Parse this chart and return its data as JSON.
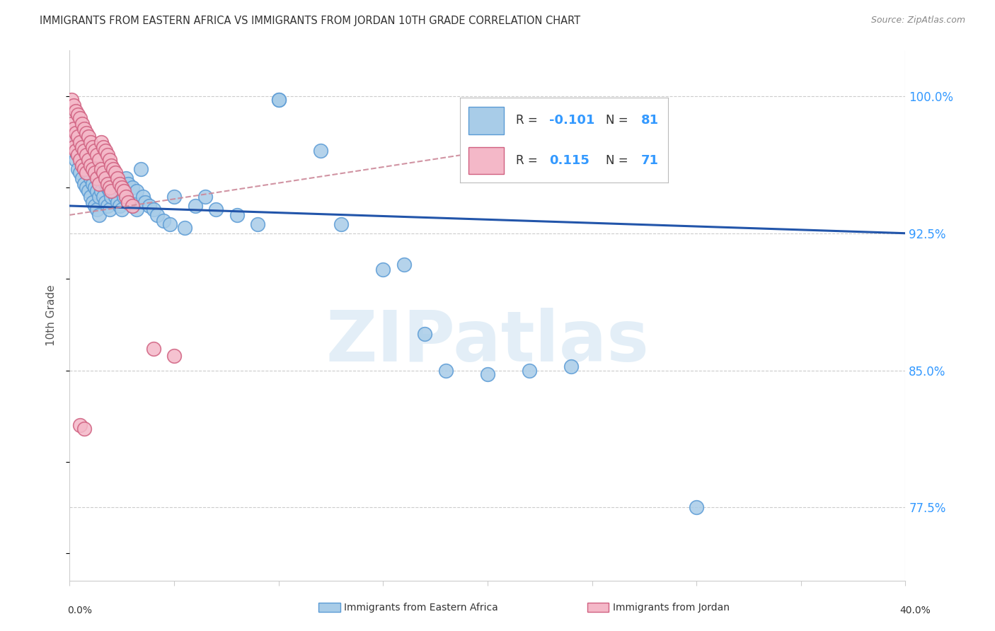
{
  "title": "IMMIGRANTS FROM EASTERN AFRICA VS IMMIGRANTS FROM JORDAN 10TH GRADE CORRELATION CHART",
  "source": "Source: ZipAtlas.com",
  "ylabel": "10th Grade",
  "ytick_values": [
    0.775,
    0.85,
    0.925,
    1.0
  ],
  "xlim": [
    0.0,
    0.4
  ],
  "ylim": [
    0.735,
    1.025
  ],
  "legend_label_blue": "Immigrants from Eastern Africa",
  "legend_label_pink": "Immigrants from Jordan",
  "blue_color": "#a8cce8",
  "blue_edge_color": "#5b9bd5",
  "blue_line_color": "#2255aa",
  "pink_color": "#f4b8c8",
  "pink_edge_color": "#d06080",
  "pink_line_color": "#cc4466",
  "pink_dashed_color": "#cc8899",
  "watermark": "ZIPatlas",
  "grid_color": "#cccccc",
  "title_color": "#333333",
  "right_label_color": "#3399ff",
  "blue_scatter": [
    [
      0.001,
      0.975
    ],
    [
      0.002,
      0.98
    ],
    [
      0.002,
      0.97
    ],
    [
      0.003,
      0.975
    ],
    [
      0.003,
      0.965
    ],
    [
      0.004,
      0.97
    ],
    [
      0.004,
      0.96
    ],
    [
      0.005,
      0.968
    ],
    [
      0.005,
      0.958
    ],
    [
      0.006,
      0.965
    ],
    [
      0.006,
      0.955
    ],
    [
      0.007,
      0.962
    ],
    [
      0.007,
      0.952
    ],
    [
      0.008,
      0.96
    ],
    [
      0.008,
      0.95
    ],
    [
      0.009,
      0.958
    ],
    [
      0.009,
      0.948
    ],
    [
      0.01,
      0.955
    ],
    [
      0.01,
      0.945
    ],
    [
      0.011,
      0.952
    ],
    [
      0.011,
      0.942
    ],
    [
      0.012,
      0.95
    ],
    [
      0.012,
      0.94
    ],
    [
      0.013,
      0.948
    ],
    [
      0.013,
      0.938
    ],
    [
      0.014,
      0.945
    ],
    [
      0.014,
      0.935
    ],
    [
      0.015,
      0.958
    ],
    [
      0.015,
      0.948
    ],
    [
      0.016,
      0.955
    ],
    [
      0.016,
      0.945
    ],
    [
      0.017,
      0.952
    ],
    [
      0.017,
      0.942
    ],
    [
      0.018,
      0.95
    ],
    [
      0.018,
      0.94
    ],
    [
      0.019,
      0.948
    ],
    [
      0.019,
      0.938
    ],
    [
      0.02,
      0.96
    ],
    [
      0.02,
      0.945
    ],
    [
      0.021,
      0.958
    ],
    [
      0.021,
      0.948
    ],
    [
      0.022,
      0.955
    ],
    [
      0.022,
      0.945
    ],
    [
      0.023,
      0.952
    ],
    [
      0.023,
      0.942
    ],
    [
      0.024,
      0.95
    ],
    [
      0.024,
      0.94
    ],
    [
      0.025,
      0.948
    ],
    [
      0.025,
      0.938
    ],
    [
      0.026,
      0.945
    ],
    [
      0.027,
      0.955
    ],
    [
      0.028,
      0.952
    ],
    [
      0.028,
      0.942
    ],
    [
      0.03,
      0.95
    ],
    [
      0.03,
      0.94
    ],
    [
      0.032,
      0.948
    ],
    [
      0.032,
      0.938
    ],
    [
      0.034,
      0.96
    ],
    [
      0.035,
      0.945
    ],
    [
      0.036,
      0.942
    ],
    [
      0.038,
      0.94
    ],
    [
      0.04,
      0.938
    ],
    [
      0.042,
      0.935
    ],
    [
      0.045,
      0.932
    ],
    [
      0.048,
      0.93
    ],
    [
      0.05,
      0.945
    ],
    [
      0.055,
      0.928
    ],
    [
      0.06,
      0.94
    ],
    [
      0.065,
      0.945
    ],
    [
      0.07,
      0.938
    ],
    [
      0.08,
      0.935
    ],
    [
      0.09,
      0.93
    ],
    [
      0.1,
      0.998
    ],
    [
      0.1,
      0.998
    ],
    [
      0.12,
      0.97
    ],
    [
      0.13,
      0.93
    ],
    [
      0.15,
      0.905
    ],
    [
      0.16,
      0.908
    ],
    [
      0.17,
      0.87
    ],
    [
      0.18,
      0.85
    ],
    [
      0.2,
      0.848
    ],
    [
      0.22,
      0.85
    ],
    [
      0.24,
      0.852
    ],
    [
      0.3,
      0.775
    ]
  ],
  "pink_scatter": [
    [
      0.001,
      0.998
    ],
    [
      0.001,
      0.985
    ],
    [
      0.001,
      0.975
    ],
    [
      0.002,
      0.995
    ],
    [
      0.002,
      0.982
    ],
    [
      0.002,
      0.972
    ],
    [
      0.003,
      0.992
    ],
    [
      0.003,
      0.98
    ],
    [
      0.003,
      0.97
    ],
    [
      0.004,
      0.99
    ],
    [
      0.004,
      0.978
    ],
    [
      0.004,
      0.968
    ],
    [
      0.005,
      0.988
    ],
    [
      0.005,
      0.975
    ],
    [
      0.005,
      0.965
    ],
    [
      0.006,
      0.985
    ],
    [
      0.006,
      0.972
    ],
    [
      0.006,
      0.962
    ],
    [
      0.007,
      0.982
    ],
    [
      0.007,
      0.97
    ],
    [
      0.007,
      0.96
    ],
    [
      0.008,
      0.98
    ],
    [
      0.008,
      0.968
    ],
    [
      0.008,
      0.958
    ],
    [
      0.009,
      0.978
    ],
    [
      0.009,
      0.965
    ],
    [
      0.01,
      0.975
    ],
    [
      0.01,
      0.962
    ],
    [
      0.011,
      0.972
    ],
    [
      0.011,
      0.96
    ],
    [
      0.012,
      0.97
    ],
    [
      0.012,
      0.958
    ],
    [
      0.013,
      0.968
    ],
    [
      0.013,
      0.955
    ],
    [
      0.014,
      0.965
    ],
    [
      0.014,
      0.952
    ],
    [
      0.015,
      0.975
    ],
    [
      0.015,
      0.96
    ],
    [
      0.016,
      0.972
    ],
    [
      0.016,
      0.958
    ],
    [
      0.017,
      0.97
    ],
    [
      0.017,
      0.955
    ],
    [
      0.018,
      0.968
    ],
    [
      0.018,
      0.952
    ],
    [
      0.019,
      0.965
    ],
    [
      0.019,
      0.95
    ],
    [
      0.02,
      0.962
    ],
    [
      0.02,
      0.948
    ],
    [
      0.021,
      0.96
    ],
    [
      0.022,
      0.958
    ],
    [
      0.023,
      0.955
    ],
    [
      0.024,
      0.952
    ],
    [
      0.025,
      0.95
    ],
    [
      0.026,
      0.948
    ],
    [
      0.027,
      0.945
    ],
    [
      0.028,
      0.942
    ],
    [
      0.03,
      0.94
    ],
    [
      0.005,
      0.82
    ],
    [
      0.007,
      0.818
    ],
    [
      0.04,
      0.862
    ],
    [
      0.05,
      0.858
    ]
  ],
  "blue_line_x": [
    0.0,
    0.4
  ],
  "blue_line_y": [
    0.94,
    0.925
  ],
  "pink_line_x": [
    0.0,
    0.2
  ],
  "pink_line_y": [
    0.935,
    0.97
  ]
}
